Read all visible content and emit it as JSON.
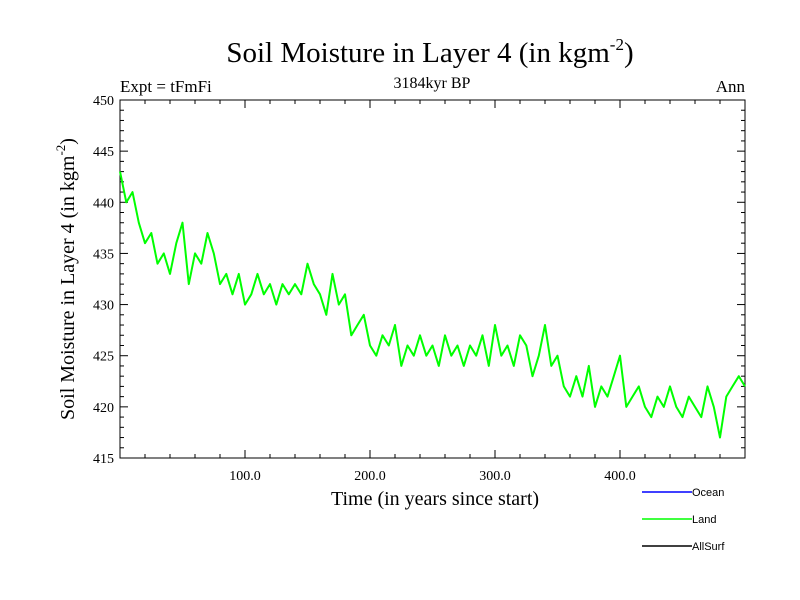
{
  "chart_data": {
    "type": "line",
    "title_main": "Soil Moisture in Layer 4 (in kgm",
    "title_sup": "-2",
    "title_close": ")",
    "subtitle_left": "Expt = tFmFi",
    "subtitle_center": "3184kyr BP",
    "subtitle_right": "Ann",
    "xlabel": "Time (in years since start)",
    "ylabel_main": "Soil Moisture in Layer 4 (in kgm",
    "ylabel_sup": "-2",
    "ylabel_close": ")",
    "xlim": [
      0,
      500
    ],
    "ylim": [
      415,
      450
    ],
    "x_ticks": [
      {
        "value": 100,
        "label": "100.0"
      },
      {
        "value": 200,
        "label": "200.0"
      },
      {
        "value": 300,
        "label": "300.0"
      },
      {
        "value": 400,
        "label": "400.0"
      }
    ],
    "y_ticks": [
      {
        "value": 415,
        "label": "415"
      },
      {
        "value": 420,
        "label": "420"
      },
      {
        "value": 425,
        "label": "425"
      },
      {
        "value": 430,
        "label": "430"
      },
      {
        "value": 435,
        "label": "435"
      },
      {
        "value": 440,
        "label": "440"
      },
      {
        "value": 445,
        "label": "445"
      },
      {
        "value": 450,
        "label": "450"
      }
    ],
    "legend": [
      {
        "name": "Ocean",
        "color": "#0000ff"
      },
      {
        "name": "Land",
        "color": "#00ff00"
      },
      {
        "name": "AllSurf",
        "color": "#000000"
      }
    ],
    "series": [
      {
        "name": "Land",
        "color": "#00ff00",
        "x": [
          0,
          5,
          10,
          15,
          20,
          25,
          30,
          35,
          40,
          45,
          50,
          55,
          60,
          65,
          70,
          75,
          80,
          85,
          90,
          95,
          100,
          105,
          110,
          115,
          120,
          125,
          130,
          135,
          140,
          145,
          150,
          155,
          160,
          165,
          170,
          175,
          180,
          185,
          190,
          195,
          200,
          205,
          210,
          215,
          220,
          225,
          230,
          235,
          240,
          245,
          250,
          255,
          260,
          265,
          270,
          275,
          280,
          285,
          290,
          295,
          300,
          305,
          310,
          315,
          320,
          325,
          330,
          335,
          340,
          345,
          350,
          355,
          360,
          365,
          370,
          375,
          380,
          385,
          390,
          395,
          400,
          405,
          410,
          415,
          420,
          425,
          430,
          435,
          440,
          445,
          450,
          455,
          460,
          465,
          470,
          475,
          480,
          485,
          490,
          495,
          500
        ],
        "values": [
          443,
          440,
          441,
          438,
          436,
          437,
          434,
          435,
          433,
          436,
          438,
          432,
          435,
          434,
          437,
          435,
          432,
          433,
          431,
          433,
          430,
          431,
          433,
          431,
          432,
          430,
          432,
          431,
          432,
          431,
          434,
          432,
          431,
          429,
          433,
          430,
          431,
          427,
          428,
          429,
          426,
          425,
          427,
          426,
          428,
          424,
          426,
          425,
          427,
          425,
          426,
          424,
          427,
          425,
          426,
          424,
          426,
          425,
          427,
          424,
          428,
          425,
          426,
          424,
          427,
          426,
          423,
          425,
          428,
          424,
          425,
          422,
          421,
          423,
          421,
          424,
          420,
          422,
          421,
          423,
          425,
          420,
          421,
          422,
          420,
          419,
          421,
          420,
          422,
          420,
          419,
          421,
          420,
          419,
          422,
          420,
          417,
          421,
          422,
          423,
          422
        ]
      }
    ]
  }
}
